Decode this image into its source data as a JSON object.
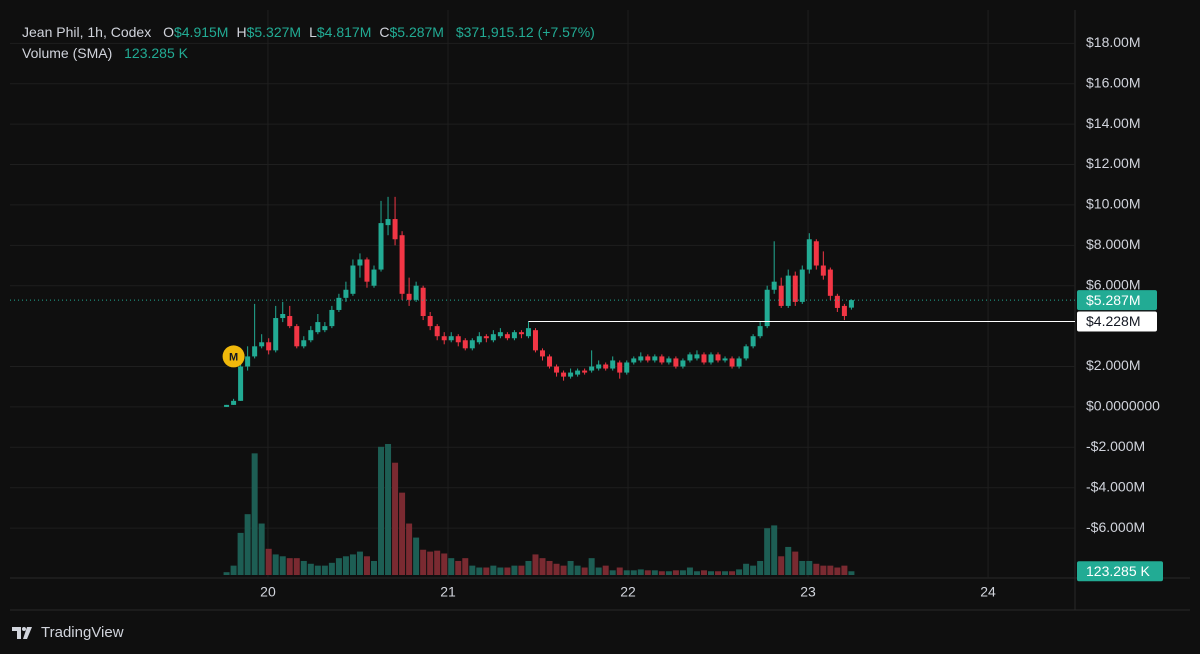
{
  "chart_data": {
    "type": "candlestick",
    "title": "Jean Phil, 1h, Codex",
    "ohlc_legend": [
      {
        "key": "O",
        "label": "$4.915M"
      },
      {
        "key": "H",
        "label": "$5.327M"
      },
      {
        "key": "L",
        "label": "$4.817M"
      },
      {
        "key": "C",
        "label": "$5.287M"
      }
    ],
    "change_label": "$371,915.12 (+7.57%)",
    "volume_sma": {
      "name": "Volume (SMA)",
      "value": 123.285,
      "label": "123.285 K"
    },
    "branding": "TradingView",
    "up_color": "#22ab94",
    "down_color": "#f23645",
    "up_volume_color": "#1d5e54",
    "down_volume_color": "#7a2a31",
    "grid": true,
    "x": [
      19.77,
      19.809,
      19.848,
      19.887,
      19.926,
      19.965,
      20.004,
      20.043,
      20.082,
      20.121,
      20.16,
      20.199,
      20.238,
      20.277,
      20.316,
      20.355,
      20.394,
      20.433,
      20.472,
      20.511,
      20.55,
      20.589,
      20.628,
      20.667,
      20.706,
      20.745,
      20.784,
      20.823,
      20.862,
      20.901,
      20.94,
      20.979,
      21.018,
      21.057,
      21.096,
      21.135,
      21.174,
      21.213,
      21.252,
      21.291,
      21.33,
      21.369,
      21.408,
      21.447,
      21.486,
      21.525,
      21.564,
      21.603,
      21.642,
      21.681,
      21.72,
      21.759,
      21.798,
      21.837,
      21.876,
      21.915,
      21.954,
      21.993,
      22.032,
      22.071,
      22.11,
      22.149,
      22.188,
      22.227,
      22.266,
      22.305,
      22.344,
      22.383,
      22.422,
      22.461,
      22.5,
      22.539,
      22.578,
      22.617,
      22.656,
      22.695,
      22.734,
      22.773,
      22.812,
      22.851,
      22.89,
      22.929,
      22.968,
      23.007,
      23.046,
      23.085,
      23.124,
      23.163,
      23.202,
      23.241
    ],
    "open": [
      0.0,
      0.1,
      0.3,
      2.0,
      2.5,
      3.0,
      3.2,
      2.8,
      4.4,
      4.5,
      4.0,
      3.0,
      3.3,
      3.7,
      3.8,
      4.0,
      4.8,
      5.4,
      5.6,
      7.0,
      7.3,
      6.0,
      6.8,
      9.0,
      9.3,
      8.5,
      5.6,
      5.3,
      5.9,
      4.5,
      4.0,
      3.5,
      3.3,
      3.5,
      3.3,
      2.9,
      3.2,
      3.5,
      3.3,
      3.5,
      3.6,
      3.4,
      3.7,
      3.5,
      3.8,
      2.8,
      2.5,
      2.0,
      1.7,
      1.5,
      1.6,
      1.8,
      1.8,
      1.9,
      2.1,
      1.9,
      2.2,
      1.7,
      2.2,
      2.3,
      2.5,
      2.3,
      2.5,
      2.2,
      2.4,
      2.0,
      2.3,
      2.4,
      2.6,
      2.2,
      2.6,
      2.3,
      2.4,
      2.0,
      2.4,
      3.0,
      3.5,
      4.0,
      5.8,
      6.0,
      5.0,
      6.5,
      5.2,
      6.8,
      8.2,
      7.0,
      6.8,
      5.5,
      5.0,
      4.915
    ],
    "high": [
      0.1,
      0.4,
      2.2,
      3.0,
      5.1,
      3.6,
      3.4,
      5.0,
      5.2,
      5.0,
      4.1,
      3.5,
      4.0,
      4.6,
      4.2,
      5.0,
      5.6,
      6.2,
      7.3,
      7.6,
      7.4,
      7.0,
      10.2,
      10.4,
      10.4,
      8.7,
      6.4,
      6.2,
      6.0,
      4.7,
      4.1,
      3.7,
      3.7,
      3.6,
      3.4,
      3.4,
      3.7,
      3.6,
      3.8,
      3.9,
      3.7,
      3.8,
      3.8,
      4.228,
      3.9,
      2.9,
      2.6,
      2.1,
      1.8,
      1.9,
      1.9,
      1.9,
      2.8,
      2.3,
      2.2,
      2.5,
      2.3,
      2.3,
      2.5,
      2.7,
      2.6,
      2.6,
      2.6,
      2.5,
      2.5,
      2.4,
      2.7,
      2.8,
      2.7,
      2.7,
      2.7,
      2.5,
      2.5,
      2.5,
      3.1,
      3.6,
      4.2,
      6.0,
      8.2,
      6.4,
      6.8,
      6.7,
      7.0,
      8.6,
      8.3,
      7.7,
      6.9,
      5.6,
      5.1,
      5.327
    ],
    "low": [
      0.0,
      0.1,
      0.3,
      1.8,
      2.4,
      2.9,
      2.6,
      2.7,
      4.2,
      3.9,
      2.9,
      2.9,
      3.2,
      3.6,
      3.7,
      3.9,
      4.7,
      5.2,
      5.5,
      6.4,
      5.9,
      5.9,
      6.7,
      8.5,
      8.0,
      5.3,
      5.0,
      5.2,
      4.3,
      3.8,
      3.3,
      3.1,
      3.2,
      3.0,
      2.8,
      2.8,
      3.1,
      3.2,
      3.2,
      3.4,
      3.3,
      3.3,
      3.4,
      3.4,
      2.7,
      2.3,
      1.9,
      1.5,
      1.3,
      1.4,
      1.5,
      1.6,
      1.7,
      1.8,
      1.8,
      1.8,
      1.4,
      1.6,
      2.1,
      2.2,
      2.2,
      2.2,
      2.1,
      2.1,
      1.9,
      1.9,
      2.2,
      2.3,
      2.1,
      2.1,
      2.2,
      2.2,
      1.9,
      1.9,
      2.3,
      2.9,
      3.4,
      3.9,
      5.6,
      4.9,
      4.9,
      5.0,
      5.1,
      6.6,
      6.8,
      6.3,
      5.3,
      4.7,
      4.3,
      4.817
    ],
    "close": [
      0.1,
      0.3,
      2.0,
      2.5,
      3.0,
      3.2,
      2.8,
      4.4,
      4.6,
      4.0,
      3.0,
      3.3,
      3.8,
      4.2,
      4.0,
      4.8,
      5.4,
      5.8,
      7.0,
      7.3,
      6.2,
      6.8,
      9.1,
      9.3,
      8.3,
      5.6,
      5.3,
      6.0,
      4.5,
      4.0,
      3.5,
      3.3,
      3.5,
      3.2,
      2.9,
      3.3,
      3.5,
      3.4,
      3.6,
      3.7,
      3.4,
      3.7,
      3.6,
      3.9,
      2.8,
      2.5,
      2.0,
      1.7,
      1.5,
      1.7,
      1.8,
      1.7,
      2.0,
      2.1,
      1.9,
      2.3,
      1.7,
      2.2,
      2.4,
      2.5,
      2.3,
      2.5,
      2.2,
      2.4,
      2.0,
      2.3,
      2.6,
      2.6,
      2.2,
      2.6,
      2.3,
      2.4,
      2.0,
      2.4,
      3.0,
      3.5,
      4.0,
      5.8,
      6.2,
      5.0,
      6.5,
      5.2,
      6.8,
      8.3,
      7.0,
      6.5,
      5.5,
      4.9,
      4.5,
      5.287
    ],
    "volume": [
      93,
      310,
      1395,
      2015,
      4030,
      1705,
      868,
      682,
      620,
      558,
      558,
      465,
      372,
      310,
      310,
      403,
      558,
      620,
      682,
      775,
      620,
      465,
      4247,
      4340,
      3720,
      2728,
      1705,
      1240,
      837,
      775,
      806,
      713,
      558,
      465,
      558,
      310,
      248,
      248,
      310,
      248,
      248,
      310,
      310,
      465,
      682,
      558,
      465,
      372,
      310,
      465,
      310,
      248,
      558,
      248,
      310,
      155,
      248,
      155,
      155,
      186,
      155,
      155,
      124,
      124,
      155,
      155,
      248,
      124,
      155,
      124,
      124,
      124,
      124,
      186,
      372,
      310,
      465,
      1550,
      1643,
      620,
      930,
      775,
      465,
      465,
      372,
      310,
      310,
      248,
      310,
      123.285
    ],
    "xlim": [
      18.567,
      24.483
    ],
    "xticks": [
      20,
      21,
      22,
      23,
      24
    ],
    "ylim": [
      -8.47,
      19.65
    ],
    "yticks": [
      {
        "value": 18,
        "label": "$18.00M"
      },
      {
        "value": 16,
        "label": "$16.00M"
      },
      {
        "value": 14,
        "label": "$14.00M"
      },
      {
        "value": 12,
        "label": "$12.00M"
      },
      {
        "value": 10,
        "label": "$10.00M"
      },
      {
        "value": 8,
        "label": "$8.000M"
      },
      {
        "value": 6,
        "label": "$6.000M"
      },
      {
        "value": 2,
        "label": "$2.000M"
      },
      {
        "value": 0,
        "label": "$0.0000000"
      },
      {
        "value": -2,
        "label": "-$2.000M"
      },
      {
        "value": -4,
        "label": "-$4.000M"
      },
      {
        "value": -6,
        "label": "-$6.000M"
      }
    ],
    "price_lines": [
      {
        "value": 5.287,
        "label": "$5.287M",
        "color": "#22ab94",
        "style": "dotted"
      },
      {
        "value": 4.228,
        "label": "$4.228M",
        "color": "#ffffff",
        "style": "solid",
        "x": 21.447
      }
    ],
    "markers": [
      {
        "label": "M",
        "x": 19.809,
        "y": 2.5,
        "color": "#f0b90b"
      }
    ]
  }
}
